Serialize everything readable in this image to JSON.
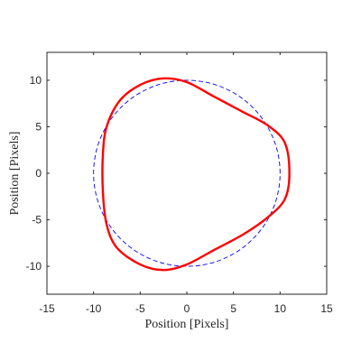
{
  "chart_data": {
    "type": "line",
    "title": "",
    "xlabel": "Position [Pixels]",
    "ylabel": "Position [Pixels]",
    "xlim": [
      -15,
      15
    ],
    "ylim": [
      -13,
      13
    ],
    "xticks": [
      -15,
      -10,
      -5,
      0,
      5,
      10,
      15
    ],
    "yticks": [
      -10,
      -5,
      0,
      5,
      10
    ],
    "xtick_labels": [
      "-15",
      "-10",
      "-5",
      "0",
      "5",
      "10",
      "15"
    ],
    "ytick_labels": [
      "-10",
      "-5",
      "0",
      "5",
      "10"
    ],
    "grid": false,
    "legend": "none",
    "series": [
      {
        "style": "dashed",
        "color": "#0000ff",
        "points": [
          [
            10.0,
            0.0
          ],
          [
            9.51,
            3.09
          ],
          [
            8.09,
            5.88
          ],
          [
            5.88,
            8.09
          ],
          [
            3.09,
            9.51
          ],
          [
            0.0,
            10.0
          ],
          [
            -3.09,
            9.51
          ],
          [
            -5.88,
            8.09
          ],
          [
            -8.09,
            5.88
          ],
          [
            -9.51,
            3.09
          ],
          [
            -10.0,
            0.0
          ],
          [
            -9.51,
            -3.09
          ],
          [
            -8.09,
            -5.88
          ],
          [
            -5.88,
            -8.09
          ],
          [
            -3.09,
            -9.51
          ],
          [
            0.0,
            -10.0
          ],
          [
            3.09,
            -9.51
          ],
          [
            5.88,
            -8.09
          ],
          [
            8.09,
            -5.88
          ],
          [
            9.51,
            -3.09
          ],
          [
            10.0,
            0.0
          ]
        ]
      },
      {
        "style": "solid",
        "color": "#ff0000",
        "points": [
          [
            11.0,
            0.0
          ],
          [
            10.5,
            3.3
          ],
          [
            8.6,
            5.2
          ],
          [
            6.0,
            6.6
          ],
          [
            3.0,
            8.2
          ],
          [
            0.0,
            9.8
          ],
          [
            -2.5,
            10.2
          ],
          [
            -5.0,
            9.5
          ],
          [
            -7.2,
            7.8
          ],
          [
            -8.6,
            5.0
          ],
          [
            -9.0,
            2.0
          ],
          [
            -9.0,
            -2.0
          ],
          [
            -8.6,
            -5.5
          ],
          [
            -7.5,
            -8.0
          ],
          [
            -5.0,
            -9.8
          ],
          [
            -2.5,
            -10.4
          ],
          [
            0.0,
            -9.8
          ],
          [
            3.0,
            -8.2
          ],
          [
            6.0,
            -6.6
          ],
          [
            8.6,
            -4.8
          ],
          [
            10.5,
            -2.8
          ],
          [
            11.0,
            0.0
          ]
        ]
      }
    ]
  }
}
